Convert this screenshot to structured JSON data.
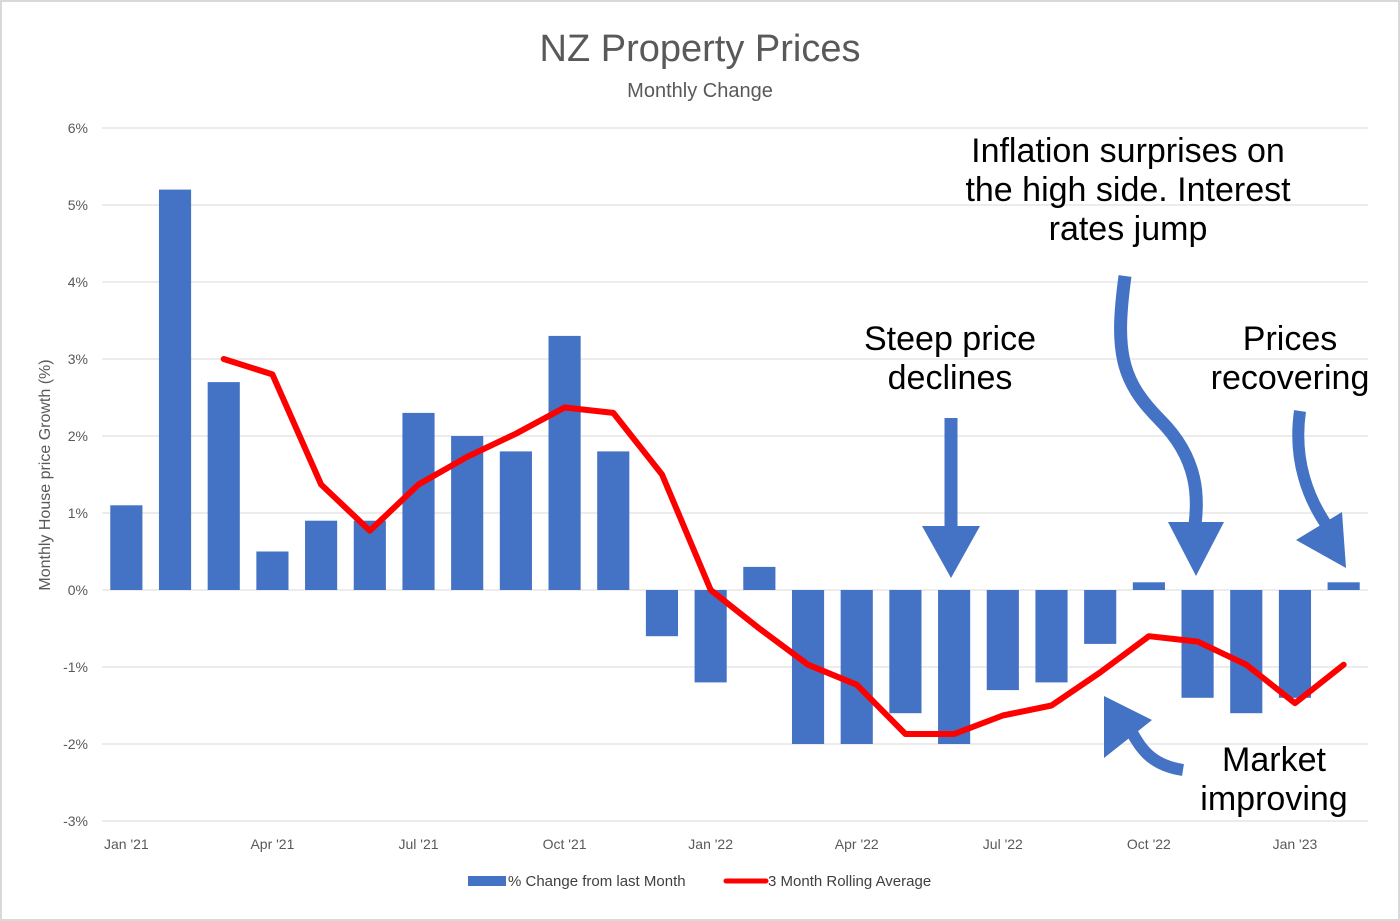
{
  "chart_data": {
    "type": "bar+line",
    "title": "NZ Property Prices",
    "subtitle": "Monthly Change",
    "ylabel": "Monthly House price Growth (%)",
    "xlabel": "",
    "ylim": [
      -3,
      6
    ],
    "yticks": [
      "6%",
      "5%",
      "4%",
      "3%",
      "2%",
      "1%",
      "0%",
      "-1%",
      "-2%",
      "-3%"
    ],
    "ytick_values": [
      6,
      5,
      4,
      3,
      2,
      1,
      0,
      -1,
      -2,
      -3
    ],
    "xtick_labels": [
      "Jan '21",
      "Apr '21",
      "Jul '21",
      "Oct '21",
      "Jan '22",
      "Apr '22",
      "Jul '22",
      "Oct '22",
      "Jan '23"
    ],
    "xtick_indices": [
      0,
      3,
      6,
      9,
      12,
      15,
      18,
      21,
      24
    ],
    "months": [
      "Jan '21",
      "Feb '21",
      "Mar '21",
      "Apr '21",
      "May '21",
      "Jun '21",
      "Jul '21",
      "Aug '21",
      "Sep '21",
      "Oct '21",
      "Nov '21",
      "Dec '21",
      "Jan '22",
      "Feb '22",
      "Mar '22",
      "Apr '22",
      "May '22",
      "Jun '22",
      "Jul '22",
      "Aug '22",
      "Sep '22",
      "Oct '22",
      "Nov '22",
      "Dec '22",
      "Jan '23",
      "Feb '23"
    ],
    "series": [
      {
        "name": "% Change from last Month",
        "kind": "bar",
        "color": "#4472c4",
        "values": [
          1.1,
          5.2,
          2.7,
          0.5,
          0.9,
          0.9,
          2.3,
          2.0,
          1.8,
          3.3,
          1.8,
          -0.6,
          -1.2,
          0.3,
          -2.0,
          -2.0,
          -1.6,
          -2.0,
          -1.3,
          -1.2,
          -0.7,
          0.1,
          -1.4,
          -1.6,
          -1.4,
          0.1
        ]
      },
      {
        "name": "3 Month Rolling Average",
        "kind": "line",
        "color": "#ff0000",
        "values": [
          null,
          null,
          3.0,
          2.8,
          1.37,
          0.77,
          1.37,
          1.73,
          2.03,
          2.37,
          2.3,
          1.5,
          0.0,
          -0.5,
          -0.97,
          -1.23,
          -1.87,
          -1.87,
          -1.63,
          -1.5,
          -1.07,
          -0.6,
          -0.67,
          -0.97,
          -1.47,
          -0.97
        ]
      }
    ],
    "legend": [
      "% Change from last Month",
      "3 Month Rolling Average"
    ],
    "legend_position": "bottom",
    "grid": true,
    "annotations": [
      {
        "text": "Inflation surprises on the high side. Interest rates jump",
        "lines": [
          "Inflation surprises on",
          "the high side. Interest",
          "rates jump"
        ]
      },
      {
        "text": "Steep price declines",
        "lines": [
          "Steep price",
          "declines"
        ]
      },
      {
        "text": "Prices recovering",
        "lines": [
          "Prices",
          "recovering"
        ]
      },
      {
        "text": "Market improving",
        "lines": [
          "Market",
          "improving"
        ]
      }
    ],
    "arrow_color": "#4472c4"
  }
}
